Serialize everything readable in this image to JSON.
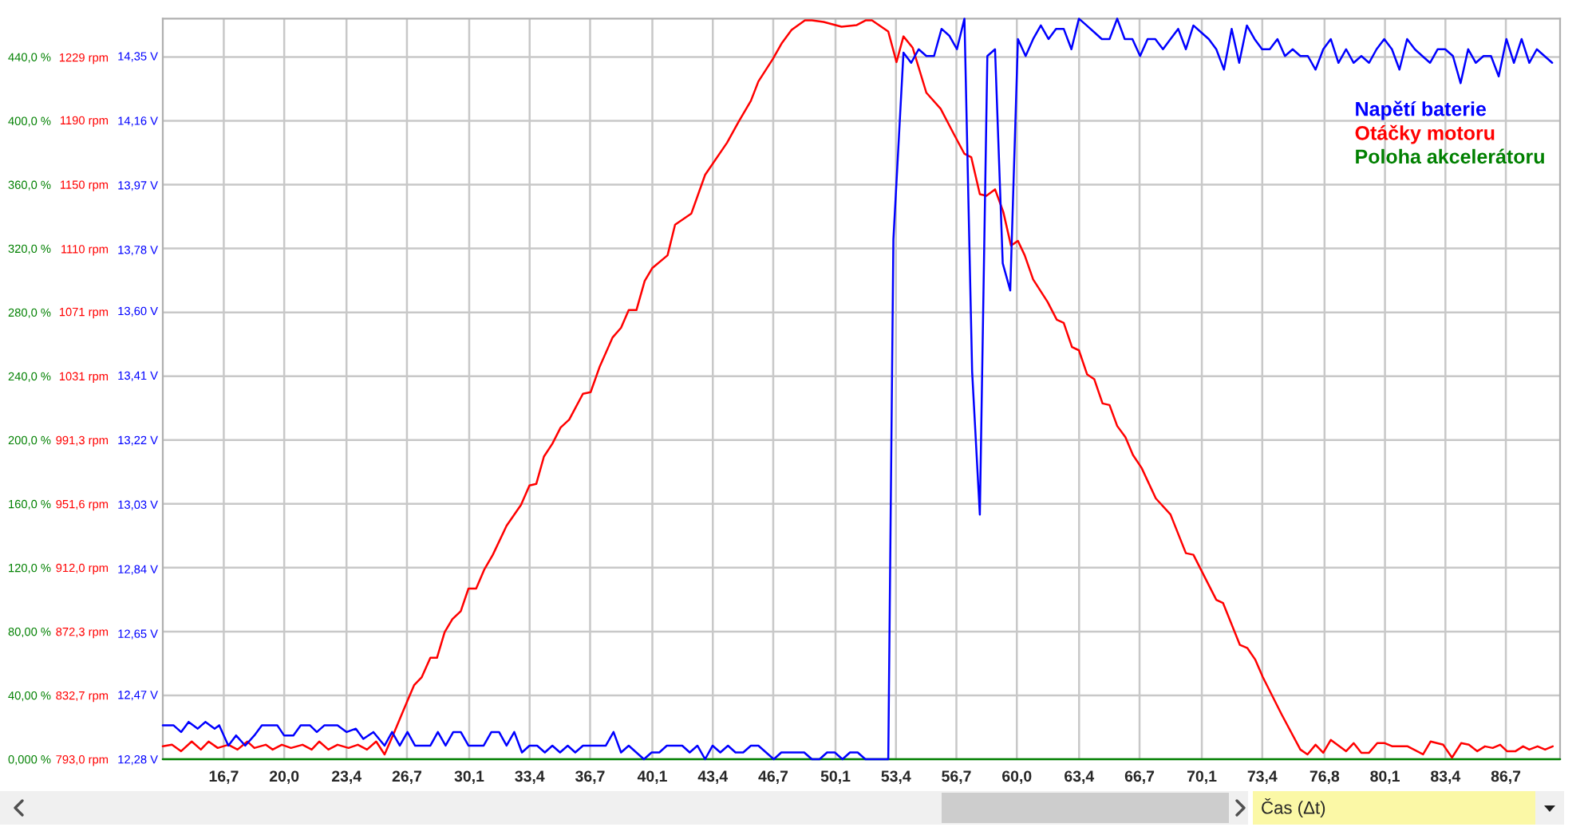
{
  "chart_data": {
    "type": "line",
    "xlabel": "Čas (Δt)",
    "xlim": [
      13.37,
      89.66
    ],
    "xticks": [
      {
        "value": 16.7,
        "label": "16,7"
      },
      {
        "value": 20.0,
        "label": "20,0"
      },
      {
        "value": 23.4,
        "label": "23,4"
      },
      {
        "value": 26.7,
        "label": "26,7"
      },
      {
        "value": 30.1,
        "label": "30,1"
      },
      {
        "value": 33.4,
        "label": "33,4"
      },
      {
        "value": 36.7,
        "label": "36,7"
      },
      {
        "value": 40.1,
        "label": "40,1"
      },
      {
        "value": 43.4,
        "label": "43,4"
      },
      {
        "value": 46.7,
        "label": "46,7"
      },
      {
        "value": 50.1,
        "label": "50,1"
      },
      {
        "value": 53.4,
        "label": "53,4"
      },
      {
        "value": 56.7,
        "label": "56,7"
      },
      {
        "value": 60.0,
        "label": "60,0"
      },
      {
        "value": 63.4,
        "label": "63,4"
      },
      {
        "value": 66.7,
        "label": "66,7"
      },
      {
        "value": 70.1,
        "label": "70,1"
      },
      {
        "value": 73.4,
        "label": "73,4"
      },
      {
        "value": 76.8,
        "label": "76,8"
      },
      {
        "value": 80.1,
        "label": "80,1"
      },
      {
        "value": 83.4,
        "label": "83,4"
      },
      {
        "value": 86.7,
        "label": "86,7"
      }
    ],
    "ylim": [
      0,
      464
    ],
    "yticks": [
      {
        "value": 0,
        "label": "0,000 %"
      },
      {
        "value": 40,
        "label": "40,00 %"
      },
      {
        "value": 80,
        "label": "80,00 %"
      },
      {
        "value": 120,
        "label": "120,0 %"
      },
      {
        "value": 160,
        "label": "160,0 %"
      },
      {
        "value": 200,
        "label": "200,0 %"
      },
      {
        "value": 240,
        "label": "240,0 %"
      },
      {
        "value": 280,
        "label": "280,0 %"
      },
      {
        "value": 320,
        "label": "320,0 %"
      },
      {
        "value": 360,
        "label": "360,0 %"
      },
      {
        "value": 400,
        "label": "400,0 %"
      },
      {
        "value": 440,
        "label": "440,0 %"
      }
    ],
    "y2lim": [
      793.0,
      1253
    ],
    "y2ticks": [
      {
        "value": 793.0,
        "label": "793,0 rpm"
      },
      {
        "value": 832.7,
        "label": "832,7 rpm"
      },
      {
        "value": 872.3,
        "label": "872,3 rpm"
      },
      {
        "value": 912.0,
        "label": "912,0 rpm"
      },
      {
        "value": 951.6,
        "label": "951,6 rpm"
      },
      {
        "value": 991.3,
        "label": "991,3 rpm"
      },
      {
        "value": 1031,
        "label": "1031 rpm"
      },
      {
        "value": 1071,
        "label": "1071 rpm"
      },
      {
        "value": 1110,
        "label": "1110 rpm"
      },
      {
        "value": 1150,
        "label": "1150 rpm"
      },
      {
        "value": 1190,
        "label": "1190 rpm"
      },
      {
        "value": 1229,
        "label": "1229 rpm"
      }
    ],
    "y3lim": [
      12.28,
      14.46
    ],
    "y3ticks": [
      {
        "value": 12.28,
        "label": "12,28 V"
      },
      {
        "value": 12.47,
        "label": "12,47 V"
      },
      {
        "value": 12.65,
        "label": "12,65 V"
      },
      {
        "value": 12.84,
        "label": "12,84 V"
      },
      {
        "value": 13.03,
        "label": "13,03 V"
      },
      {
        "value": 13.22,
        "label": "13,22 V"
      },
      {
        "value": 13.41,
        "label": "13,41 V"
      },
      {
        "value": 13.6,
        "label": "13,60 V"
      },
      {
        "value": 13.78,
        "label": "13,78 V"
      },
      {
        "value": 13.97,
        "label": "13,97 V"
      },
      {
        "value": 14.16,
        "label": "14,16 V"
      },
      {
        "value": 14.35,
        "label": "14,35 V"
      }
    ],
    "grid": true,
    "legend": "top right",
    "series": [
      {
        "name": "Napětí baterie",
        "color": "#0000ff",
        "axis": "y3",
        "x": [
          13.37,
          13.95,
          14.37,
          14.78,
          15.28,
          15.7,
          16.2,
          16.45,
          16.95,
          17.37,
          17.87,
          18.37,
          18.78,
          19.62,
          19.99,
          20.5,
          20.9,
          21.4,
          21.78,
          22.2,
          22.91,
          23.41,
          23.91,
          24.32,
          24.87,
          25.48,
          25.89,
          26.31,
          26.73,
          27.14,
          27.98,
          28.39,
          28.81,
          29.23,
          29.64,
          30.06,
          30.89,
          31.31,
          31.73,
          32.14,
          32.56,
          32.98,
          33.39,
          33.81,
          34.23,
          34.64,
          35.06,
          35.48,
          35.89,
          36.31,
          37.56,
          37.98,
          38.39,
          38.81,
          39.64,
          40.06,
          40.48,
          40.89,
          41.73,
          42.14,
          42.56,
          42.98,
          43.39,
          43.81,
          44.23,
          44.64,
          45.06,
          45.48,
          45.89,
          46.73,
          47.14,
          48.39,
          48.81,
          49.23,
          49.64,
          50.06,
          50.48,
          50.89,
          51.31,
          51.73,
          52.98,
          53.26,
          53.81,
          54.23,
          54.64,
          55.06,
          55.48,
          55.89,
          56.31,
          56.73,
          57.14,
          57.56,
          57.98,
          58.39,
          58.81,
          59.23,
          59.64,
          60.06,
          60.48,
          60.89,
          61.31,
          61.73,
          62.14,
          62.56,
          62.98,
          63.39,
          63.81,
          64.23,
          64.64,
          65.06,
          65.48,
          65.89,
          66.31,
          66.73,
          67.14,
          67.56,
          67.98,
          68.39,
          68.81,
          69.23,
          69.64,
          70.06,
          70.48,
          70.89,
          71.31,
          71.73,
          72.14,
          72.56,
          72.98,
          73.39,
          73.81,
          74.23,
          74.64,
          75.06,
          75.48,
          75.89,
          76.31,
          76.73,
          77.14,
          77.56,
          77.98,
          78.39,
          78.81,
          79.23,
          79.64,
          80.06,
          80.48,
          80.89,
          81.31,
          81.73,
          82.14,
          82.56,
          82.98,
          83.39,
          83.81,
          84.23,
          84.64,
          85.06,
          85.48,
          85.89,
          86.31,
          86.73,
          87.14,
          87.56,
          87.98,
          88.39,
          88.81,
          89.23
        ],
        "values": [
          12.38,
          12.38,
          12.36,
          12.39,
          12.37,
          12.39,
          12.37,
          12.38,
          12.32,
          12.35,
          12.32,
          12.35,
          12.38,
          12.38,
          12.35,
          12.35,
          12.38,
          12.38,
          12.36,
          12.38,
          12.38,
          12.36,
          12.37,
          12.34,
          12.36,
          12.32,
          12.36,
          12.32,
          12.36,
          12.32,
          12.32,
          12.36,
          12.32,
          12.36,
          12.36,
          12.32,
          12.32,
          12.36,
          12.36,
          12.32,
          12.36,
          12.3,
          12.32,
          12.32,
          12.3,
          12.32,
          12.3,
          12.32,
          12.3,
          12.32,
          12.32,
          12.36,
          12.3,
          12.32,
          12.28,
          12.3,
          12.3,
          12.32,
          12.32,
          12.3,
          12.32,
          12.28,
          12.32,
          12.3,
          12.32,
          12.3,
          12.3,
          12.32,
          12.32,
          12.28,
          12.3,
          12.3,
          12.28,
          12.28,
          12.3,
          12.3,
          12.28,
          12.3,
          12.3,
          12.28,
          12.28,
          13.81,
          14.36,
          14.33,
          14.37,
          14.35,
          14.35,
          14.43,
          14.41,
          14.37,
          14.46,
          13.42,
          13.0,
          14.35,
          14.37,
          13.74,
          13.66,
          14.4,
          14.35,
          14.4,
          14.44,
          14.4,
          14.43,
          14.43,
          14.37,
          14.46,
          14.44,
          14.42,
          14.4,
          14.4,
          14.46,
          14.4,
          14.4,
          14.35,
          14.4,
          14.4,
          14.37,
          14.4,
          14.43,
          14.37,
          14.44,
          14.42,
          14.4,
          14.37,
          14.31,
          14.43,
          14.33,
          14.44,
          14.4,
          14.37,
          14.37,
          14.4,
          14.35,
          14.37,
          14.35,
          14.35,
          14.31,
          14.37,
          14.4,
          14.33,
          14.37,
          14.33,
          14.35,
          14.33,
          14.37,
          14.4,
          14.37,
          14.31,
          14.4,
          14.37,
          14.35,
          14.33,
          14.37,
          14.37,
          14.35,
          14.27,
          14.37,
          14.33,
          14.35,
          14.35,
          14.29,
          14.4,
          14.33,
          14.4,
          14.33,
          14.37,
          14.35,
          14.33
        ]
      },
      {
        "name": "Otáčky motoru",
        "color": "#ff0000",
        "axis": "y2",
        "x": [
          13.37,
          13.87,
          14.37,
          14.95,
          15.45,
          15.87,
          16.37,
          16.95,
          17.45,
          17.99,
          18.37,
          18.99,
          19.37,
          19.87,
          20.37,
          21.0,
          21.5,
          21.91,
          22.41,
          22.91,
          23.51,
          24.02,
          24.52,
          25.02,
          25.48,
          25.98,
          26.53,
          27.09,
          27.51,
          27.98,
          28.34,
          28.76,
          29.18,
          29.64,
          30.06,
          30.48,
          30.93,
          31.39,
          32.14,
          32.93,
          33.39,
          33.76,
          34.18,
          34.64,
          35.09,
          35.56,
          36.31,
          36.73,
          37.23,
          37.93,
          38.39,
          38.81,
          39.23,
          39.68,
          40.09,
          40.93,
          41.34,
          42.23,
          42.98,
          44.18,
          44.81,
          45.48,
          45.89,
          46.68,
          47.18,
          47.7,
          48.43,
          48.81,
          49.45,
          50.43,
          51.26,
          51.76,
          52.09,
          52.98,
          53.43,
          53.81,
          54.31,
          55.06,
          55.84,
          56.53,
          57.14,
          57.51,
          57.98,
          58.34,
          58.81,
          59.26,
          59.68,
          60.06,
          60.43,
          60.89,
          61.68,
          62.18,
          62.56,
          63.01,
          63.39,
          63.84,
          64.23,
          64.68,
          65.06,
          65.48,
          65.93,
          66.34,
          66.81,
          67.59,
          68.39,
          69.23,
          69.64,
          70.89,
          71.26,
          72.18,
          72.59,
          73.01,
          73.43,
          74.45,
          75.48,
          75.87,
          76.31,
          76.73,
          77.14,
          77.98,
          78.39,
          78.81,
          79.23,
          79.68,
          80.09,
          80.51,
          81.34,
          82.18,
          82.59,
          83.28,
          83.76,
          84.26,
          84.68,
          85.14,
          85.56,
          85.98,
          86.39,
          86.76,
          87.23,
          87.64,
          87.98,
          88.43,
          88.84,
          89.26
        ],
        "values": [
          801,
          802,
          798,
          804,
          799,
          804,
          800,
          802,
          799,
          804,
          800,
          802,
          799,
          802,
          800,
          802,
          799,
          804,
          799,
          802,
          800,
          802,
          799,
          804,
          796,
          809,
          824,
          839,
          844,
          856,
          856,
          872,
          880,
          885,
          899,
          899,
          911,
          920,
          938,
          951,
          963,
          964,
          981,
          989,
          999,
          1004,
          1020,
          1021,
          1037,
          1055,
          1061,
          1072,
          1072,
          1090,
          1098,
          1106,
          1125,
          1132,
          1156,
          1176,
          1189,
          1202,
          1214,
          1228,
          1238,
          1246,
          1252,
          1252,
          1251,
          1248,
          1249,
          1252,
          1252,
          1245,
          1226,
          1242,
          1235,
          1207,
          1197,
          1182,
          1169,
          1167,
          1144,
          1143,
          1147,
          1133,
          1112,
          1115,
          1106,
          1091,
          1077,
          1066,
          1064,
          1049,
          1047,
          1032,
          1029,
          1014,
          1013,
          1000,
          993,
          982,
          974,
          955,
          945,
          921,
          920,
          892,
          890,
          864,
          862,
          855,
          844,
          821,
          799,
          796,
          802,
          797,
          805,
          798,
          803,
          797,
          797,
          803,
          803,
          801,
          801,
          796,
          804,
          802,
          794,
          803,
          802,
          798,
          801,
          800,
          802,
          798,
          798,
          801,
          799,
          801,
          799,
          801
        ]
      },
      {
        "name": "Poloha akcelerátoru",
        "color": "#008000",
        "x": [
          13.37,
          89.66
        ],
        "values": [
          0,
          0
        ]
      }
    ]
  }
}
